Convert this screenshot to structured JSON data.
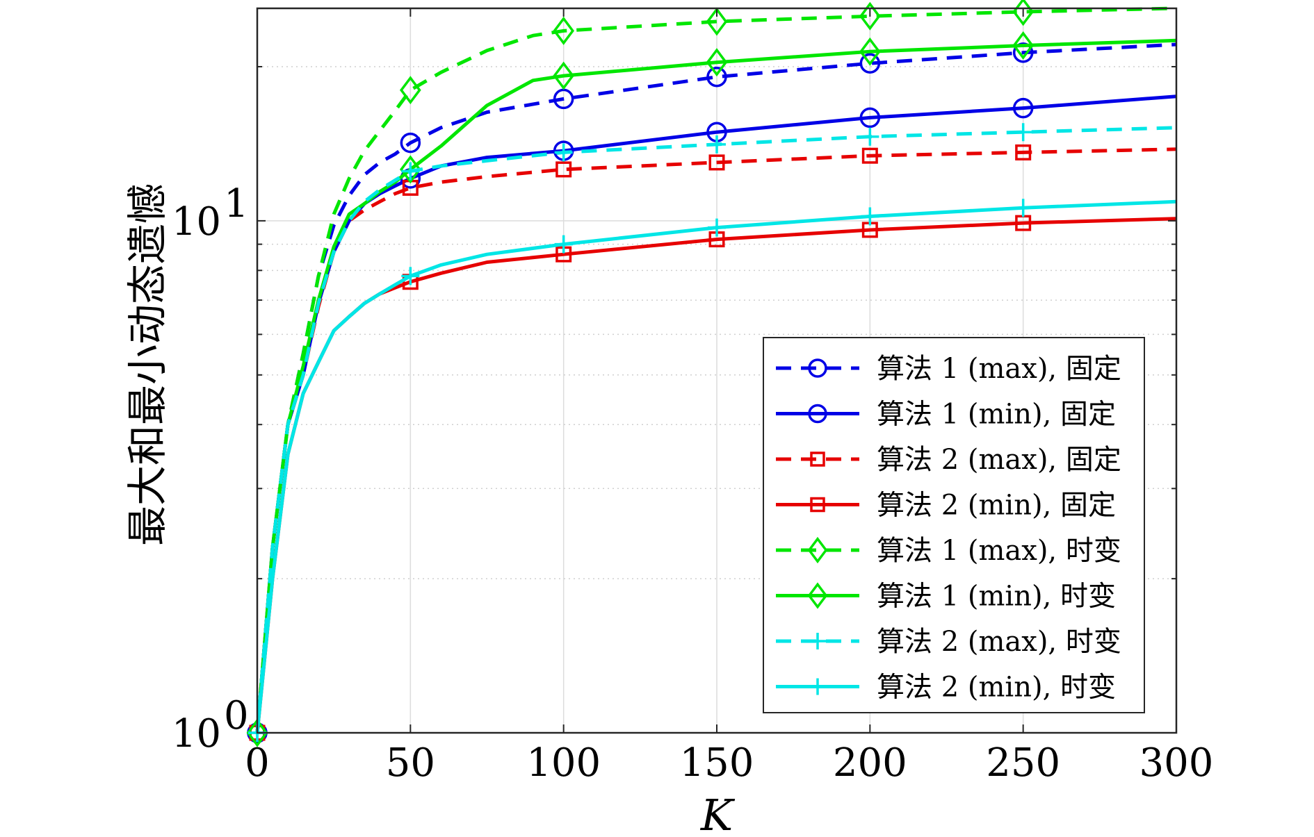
{
  "chart_data": {
    "type": "line",
    "title": "",
    "xlabel": "K",
    "ylabel": "最大和最小动态遗憾",
    "xlim": [
      0,
      300
    ],
    "ylim": [
      1,
      26
    ],
    "yscale": "log",
    "grid": true,
    "legend_position": "bottom-right",
    "x_ticks": [
      {
        "value": 0,
        "label": "0"
      },
      {
        "value": 50,
        "label": "50"
      },
      {
        "value": 100,
        "label": "100"
      },
      {
        "value": 150,
        "label": "150"
      },
      {
        "value": 200,
        "label": "200"
      },
      {
        "value": 250,
        "label": "250"
      },
      {
        "value": 300,
        "label": "300"
      }
    ],
    "y_ticks": [
      {
        "value": 1,
        "base": "10",
        "exp": "0"
      },
      {
        "value": 10,
        "base": "10",
        "exp": "1"
      }
    ],
    "series": [
      {
        "name": "算法 1 (max), 固定",
        "color": "#0000e6",
        "dash": "dashed",
        "marker": "circle",
        "x": [
          0,
          5,
          10,
          15,
          20,
          25,
          30,
          35,
          40,
          45,
          50,
          60,
          75,
          100,
          150,
          200,
          250,
          300
        ],
        "y": [
          1,
          2.3,
          4.0,
          5.5,
          7.8,
          9.8,
          11.2,
          12.3,
          13.0,
          13.5,
          14.2,
          15.2,
          16.3,
          17.3,
          19.1,
          20.3,
          21.3,
          22.1
        ],
        "marker_x": [
          0,
          50,
          100,
          150,
          200,
          250
        ]
      },
      {
        "name": "算法 1 (min), 固定",
        "color": "#0000e6",
        "dash": "solid",
        "marker": "circle",
        "x": [
          0,
          5,
          10,
          15,
          20,
          25,
          30,
          35,
          40,
          45,
          50,
          60,
          75,
          100,
          150,
          200,
          250,
          300
        ],
        "y": [
          1,
          2.3,
          4.0,
          5.0,
          6.9,
          8.7,
          10.0,
          10.8,
          11.3,
          11.7,
          12.1,
          12.8,
          13.3,
          13.7,
          14.9,
          15.9,
          16.6,
          17.5
        ],
        "marker_x": [
          0,
          50,
          100,
          150,
          200,
          250
        ]
      },
      {
        "name": "算法 2 (max), 固定",
        "color": "#e60000",
        "dash": "dashed",
        "marker": "square",
        "x": [
          0,
          5,
          10,
          15,
          20,
          25,
          30,
          35,
          40,
          45,
          50,
          60,
          75,
          100,
          150,
          200,
          250,
          300
        ],
        "y": [
          1,
          2.3,
          4.0,
          5.0,
          6.8,
          8.7,
          10.0,
          10.5,
          10.9,
          11.3,
          11.6,
          11.9,
          12.2,
          12.6,
          13.0,
          13.4,
          13.6,
          13.8
        ],
        "marker_x": [
          0,
          50,
          100,
          150,
          200,
          250
        ]
      },
      {
        "name": "算法 2 (min), 固定",
        "color": "#e60000",
        "dash": "solid",
        "marker": "square",
        "x": [
          0,
          5,
          10,
          15,
          20,
          25,
          30,
          35,
          40,
          45,
          50,
          60,
          75,
          100,
          150,
          200,
          250,
          300
        ],
        "y": [
          1,
          2.0,
          3.5,
          4.6,
          5.3,
          6.1,
          6.5,
          6.9,
          7.2,
          7.4,
          7.6,
          7.9,
          8.3,
          8.6,
          9.2,
          9.6,
          9.9,
          10.1
        ],
        "marker_x": [
          0,
          50,
          100,
          150,
          200,
          250
        ]
      },
      {
        "name": "算法 1 (max), 时变",
        "color": "#00e600",
        "dash": "dashed",
        "marker": "diamond",
        "x": [
          0,
          5,
          10,
          15,
          20,
          25,
          30,
          35,
          40,
          45,
          50,
          60,
          75,
          90,
          100,
          150,
          200,
          250,
          300
        ],
        "y": [
          1,
          2.3,
          4.0,
          5.5,
          7.8,
          10.3,
          12.1,
          13.7,
          15.0,
          16.4,
          18.0,
          19.5,
          21.5,
          23.0,
          23.5,
          24.5,
          25.1,
          25.6,
          26.0
        ],
        "marker_x": [
          0,
          50,
          100,
          150,
          200,
          250
        ]
      },
      {
        "name": "算法 1 (min), 时变",
        "color": "#00e600",
        "dash": "solid",
        "marker": "diamond",
        "x": [
          0,
          5,
          10,
          15,
          20,
          25,
          30,
          35,
          40,
          45,
          50,
          60,
          75,
          90,
          100,
          150,
          200,
          250,
          300
        ],
        "y": [
          1,
          2.3,
          4.0,
          5.2,
          7.0,
          8.9,
          10.3,
          10.8,
          11.4,
          11.9,
          12.6,
          14.0,
          16.8,
          18.8,
          19.2,
          20.4,
          21.4,
          22.0,
          22.5
        ],
        "marker_x": [
          0,
          50,
          100,
          150,
          200,
          250
        ]
      },
      {
        "name": "算法 2 (max), 时变",
        "color": "#00e6e6",
        "dash": "dashed",
        "marker": "plus",
        "x": [
          0,
          5,
          10,
          15,
          20,
          25,
          30,
          35,
          40,
          45,
          50,
          60,
          75,
          100,
          150,
          200,
          250,
          300
        ],
        "y": [
          1,
          2.3,
          4.0,
          5.0,
          6.9,
          8.7,
          10.0,
          10.9,
          11.5,
          12.0,
          12.5,
          12.8,
          13.1,
          13.6,
          14.1,
          14.6,
          14.9,
          15.2
        ],
        "marker_x": [
          0,
          50,
          100,
          150,
          200,
          250
        ]
      },
      {
        "name": "算法 2 (min), 时变",
        "color": "#00e6e6",
        "dash": "solid",
        "marker": "plus",
        "x": [
          0,
          5,
          10,
          15,
          20,
          25,
          30,
          35,
          40,
          45,
          50,
          60,
          75,
          100,
          150,
          200,
          250,
          300
        ],
        "y": [
          1,
          2.0,
          3.5,
          4.6,
          5.3,
          6.1,
          6.5,
          6.9,
          7.2,
          7.5,
          7.8,
          8.2,
          8.6,
          9.0,
          9.7,
          10.2,
          10.6,
          10.9
        ],
        "marker_x": [
          0,
          50,
          100,
          150,
          200,
          250
        ]
      }
    ]
  }
}
